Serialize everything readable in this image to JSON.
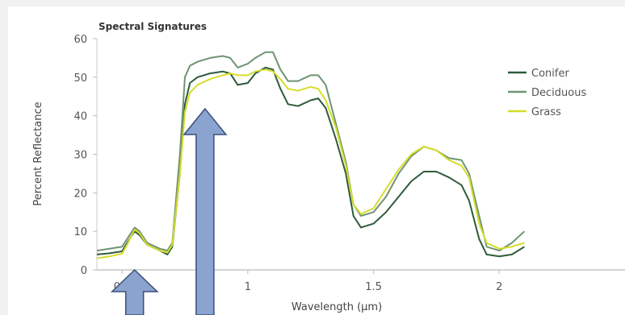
{
  "chart_data": {
    "type": "line",
    "title": "Spectral Signatures",
    "xlabel": "Wavelength (µm)",
    "ylabel": "Percent Reflectance",
    "xlim": [
      0.4,
      2.5
    ],
    "ylim": [
      0,
      60
    ],
    "x_ticks": [
      0.5,
      1,
      1.5,
      2
    ],
    "x_tick_labels": [
      "0.5",
      "1",
      "1.5",
      "2"
    ],
    "y_ticks": [
      0,
      10,
      20,
      30,
      40,
      50,
      60
    ],
    "y_tick_labels": [
      "0",
      "10",
      "20",
      "30",
      "40",
      "50",
      "60"
    ],
    "legend_position": "right",
    "series": [
      {
        "name": "Conifer",
        "color": "#2e5b3a",
        "points": [
          [
            0.4,
            4
          ],
          [
            0.45,
            4.3
          ],
          [
            0.5,
            4.8
          ],
          [
            0.52,
            7
          ],
          [
            0.55,
            10
          ],
          [
            0.57,
            9
          ],
          [
            0.6,
            6.5
          ],
          [
            0.65,
            5
          ],
          [
            0.68,
            4
          ],
          [
            0.7,
            6
          ],
          [
            0.73,
            25
          ],
          [
            0.75,
            43
          ],
          [
            0.77,
            48.5
          ],
          [
            0.8,
            50
          ],
          [
            0.85,
            51
          ],
          [
            0.9,
            51.5
          ],
          [
            0.93,
            51
          ],
          [
            0.96,
            48
          ],
          [
            1.0,
            48.5
          ],
          [
            1.03,
            51
          ],
          [
            1.07,
            52.5
          ],
          [
            1.1,
            52
          ],
          [
            1.13,
            47
          ],
          [
            1.16,
            43
          ],
          [
            1.2,
            42.5
          ],
          [
            1.25,
            44
          ],
          [
            1.28,
            44.5
          ],
          [
            1.31,
            42
          ],
          [
            1.35,
            34
          ],
          [
            1.39,
            25
          ],
          [
            1.42,
            14
          ],
          [
            1.45,
            11
          ],
          [
            1.5,
            12
          ],
          [
            1.55,
            15
          ],
          [
            1.6,
            19
          ],
          [
            1.65,
            23
          ],
          [
            1.7,
            25.5
          ],
          [
            1.75,
            25.5
          ],
          [
            1.8,
            24
          ],
          [
            1.85,
            22
          ],
          [
            1.88,
            18
          ],
          [
            1.92,
            8
          ],
          [
            1.95,
            4
          ],
          [
            2.0,
            3.5
          ],
          [
            2.05,
            4
          ],
          [
            2.1,
            6
          ]
        ]
      },
      {
        "name": "Deciduous",
        "color": "#6f9472",
        "points": [
          [
            0.4,
            5
          ],
          [
            0.45,
            5.5
          ],
          [
            0.5,
            6
          ],
          [
            0.52,
            8
          ],
          [
            0.55,
            11
          ],
          [
            0.57,
            10
          ],
          [
            0.6,
            7
          ],
          [
            0.65,
            5.5
          ],
          [
            0.68,
            5
          ],
          [
            0.7,
            7
          ],
          [
            0.73,
            30
          ],
          [
            0.75,
            50
          ],
          [
            0.77,
            53
          ],
          [
            0.8,
            54
          ],
          [
            0.85,
            55
          ],
          [
            0.9,
            55.5
          ],
          [
            0.93,
            55
          ],
          [
            0.96,
            52.5
          ],
          [
            1.0,
            53.5
          ],
          [
            1.03,
            55
          ],
          [
            1.07,
            56.5
          ],
          [
            1.1,
            56.5
          ],
          [
            1.13,
            52
          ],
          [
            1.16,
            49
          ],
          [
            1.2,
            49
          ],
          [
            1.25,
            50.5
          ],
          [
            1.28,
            50.5
          ],
          [
            1.31,
            48
          ],
          [
            1.35,
            38
          ],
          [
            1.39,
            28
          ],
          [
            1.42,
            17
          ],
          [
            1.45,
            14
          ],
          [
            1.5,
            15
          ],
          [
            1.55,
            19
          ],
          [
            1.6,
            25
          ],
          [
            1.65,
            29.5
          ],
          [
            1.7,
            32
          ],
          [
            1.75,
            31
          ],
          [
            1.8,
            29
          ],
          [
            1.85,
            28.5
          ],
          [
            1.88,
            25
          ],
          [
            1.92,
            14
          ],
          [
            1.95,
            6
          ],
          [
            2.0,
            5
          ],
          [
            2.05,
            7
          ],
          [
            2.1,
            10
          ]
        ]
      },
      {
        "name": "Grass",
        "color": "#d6dd2a",
        "points": [
          [
            0.4,
            3
          ],
          [
            0.45,
            3.5
          ],
          [
            0.5,
            4.2
          ],
          [
            0.52,
            6.5
          ],
          [
            0.55,
            10.5
          ],
          [
            0.57,
            9.5
          ],
          [
            0.6,
            6.5
          ],
          [
            0.65,
            5
          ],
          [
            0.68,
            4.5
          ],
          [
            0.7,
            6.5
          ],
          [
            0.73,
            25
          ],
          [
            0.75,
            41
          ],
          [
            0.77,
            46
          ],
          [
            0.8,
            48
          ],
          [
            0.85,
            49.5
          ],
          [
            0.9,
            50.5
          ],
          [
            0.93,
            51
          ],
          [
            0.96,
            50.5
          ],
          [
            1.0,
            50.5
          ],
          [
            1.03,
            51.5
          ],
          [
            1.07,
            52
          ],
          [
            1.1,
            51.5
          ],
          [
            1.13,
            49.5
          ],
          [
            1.16,
            47
          ],
          [
            1.2,
            46.5
          ],
          [
            1.25,
            47.5
          ],
          [
            1.28,
            47
          ],
          [
            1.31,
            44
          ],
          [
            1.35,
            37
          ],
          [
            1.39,
            27
          ],
          [
            1.42,
            17
          ],
          [
            1.45,
            14.5
          ],
          [
            1.5,
            16
          ],
          [
            1.55,
            21
          ],
          [
            1.6,
            26
          ],
          [
            1.65,
            30
          ],
          [
            1.7,
            32
          ],
          [
            1.75,
            31
          ],
          [
            1.8,
            28.5
          ],
          [
            1.85,
            27
          ],
          [
            1.88,
            24
          ],
          [
            1.92,
            12
          ],
          [
            1.95,
            7
          ],
          [
            2.0,
            5.5
          ],
          [
            2.05,
            6
          ],
          [
            2.1,
            7
          ]
        ]
      }
    ]
  },
  "annotations": {
    "arrows": [
      {
        "name": "arrow-green-peak",
        "target_x": 0.55,
        "target_y": 0
      },
      {
        "name": "arrow-red-edge",
        "target_x": 0.83,
        "target_y": 40
      }
    ],
    "arrow_fill": "#8aa3cf",
    "arrow_stroke": "#3c4f7a"
  }
}
